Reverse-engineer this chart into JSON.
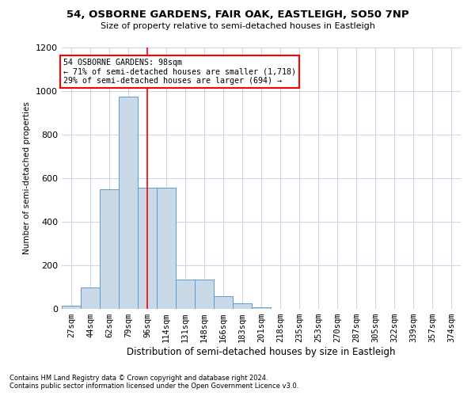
{
  "title1": "54, OSBORNE GARDENS, FAIR OAK, EASTLEIGH, SO50 7NP",
  "title2": "Size of property relative to semi-detached houses in Eastleigh",
  "xlabel": "Distribution of semi-detached houses by size in Eastleigh",
  "ylabel": "Number of semi-detached properties",
  "footnote1": "Contains HM Land Registry data © Crown copyright and database right 2024.",
  "footnote2": "Contains public sector information licensed under the Open Government Licence v3.0.",
  "categories": [
    "27sqm",
    "44sqm",
    "62sqm",
    "79sqm",
    "96sqm",
    "114sqm",
    "131sqm",
    "148sqm",
    "166sqm",
    "183sqm",
    "201sqm",
    "218sqm",
    "235sqm",
    "253sqm",
    "270sqm",
    "287sqm",
    "305sqm",
    "322sqm",
    "339sqm",
    "357sqm",
    "374sqm"
  ],
  "values": [
    15,
    100,
    550,
    975,
    555,
    555,
    135,
    135,
    60,
    25,
    8,
    0,
    0,
    0,
    0,
    0,
    0,
    0,
    0,
    0,
    0
  ],
  "bar_color": "#c9d9e8",
  "bar_edge_color": "#5b9bd5",
  "property_bin_index": 4,
  "vline_color": "red",
  "annotation_line1": "54 OSBORNE GARDENS: 98sqm",
  "annotation_line2": "← 71% of semi-detached houses are smaller (1,718)",
  "annotation_line3": "29% of semi-detached houses are larger (694) →",
  "annotation_box_color": "white",
  "annotation_box_edge": "red",
  "ylim": [
    0,
    1200
  ],
  "yticks": [
    0,
    200,
    400,
    600,
    800,
    1000,
    1200
  ],
  "background_color": "white",
  "grid_color": "#d0d8e8",
  "title1_fontsize": 9.5,
  "title2_fontsize": 8,
  "xlabel_fontsize": 8.5,
  "ylabel_fontsize": 7.5,
  "tick_fontsize": 7.5,
  "footnote_fontsize": 6
}
